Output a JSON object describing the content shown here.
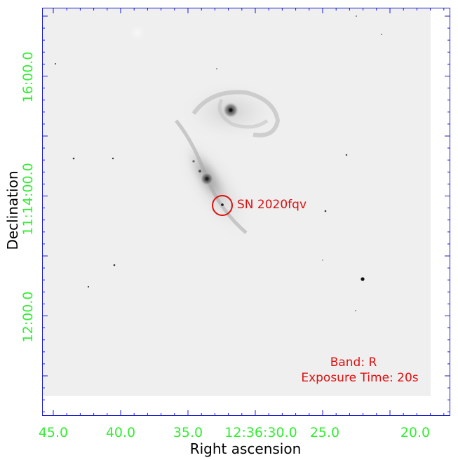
{
  "figure": {
    "xlabel": "Right ascension",
    "ylabel": "Declination",
    "ra_ticks": [
      "45.0",
      "40.0",
      "35.0",
      "12:36:30.0",
      "25.0",
      "20.0"
    ],
    "dec_ticks": [
      "16:00.0",
      "11:14:00.0",
      "12:00.0"
    ],
    "supernova_label": "SN 2020fqv",
    "band_label": "Band: R",
    "exposure_label": "Exposure Time: 20s",
    "colors": {
      "tick_label": "#33ee33",
      "annotation": "#dd1111",
      "frame": "#1a1acc",
      "sky": "#efefef"
    }
  }
}
